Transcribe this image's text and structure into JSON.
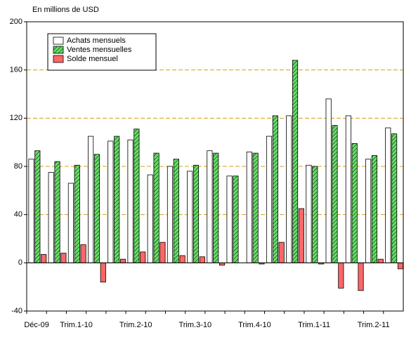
{
  "chart_data": {
    "type": "bar",
    "y_label": "En millions de USD",
    "categories": [
      "Déc-09",
      null,
      "Trim.1-10",
      null,
      null,
      "Trim.2-10",
      null,
      null,
      "Trim.3-10",
      null,
      null,
      "Trim.4-10",
      null,
      null,
      "Trim.1-11",
      null,
      null,
      "Trim.2-11",
      null
    ],
    "series": [
      {
        "name": "Achats mensuels",
        "color": "#ffffff",
        "hatch": false,
        "values": [
          86,
          75,
          66,
          105,
          101,
          102,
          73,
          80,
          76,
          93,
          72,
          92,
          105,
          122,
          81,
          136,
          122,
          86,
          112
        ]
      },
      {
        "name": "Ventes mensuelles",
        "color": "#66dd66",
        "hatch": true,
        "values": [
          93,
          84,
          81,
          90,
          105,
          111,
          91,
          86,
          81,
          91,
          72,
          91,
          122,
          168,
          80,
          114,
          99,
          89,
          107
        ]
      },
      {
        "name": "Solde mensuel",
        "color": "#ff6666",
        "hatch": false,
        "values": [
          7,
          8,
          15,
          -16,
          3,
          9,
          17,
          6,
          5,
          -2,
          0,
          -1,
          17,
          45,
          -1,
          -21,
          -23,
          3,
          -5
        ]
      }
    ],
    "ylim": [
      -40,
      200
    ],
    "yticks": [
      -40,
      0,
      40,
      80,
      120,
      160,
      200
    ],
    "grid": true,
    "grid_color": "#d4a017",
    "legend": "upper left"
  }
}
